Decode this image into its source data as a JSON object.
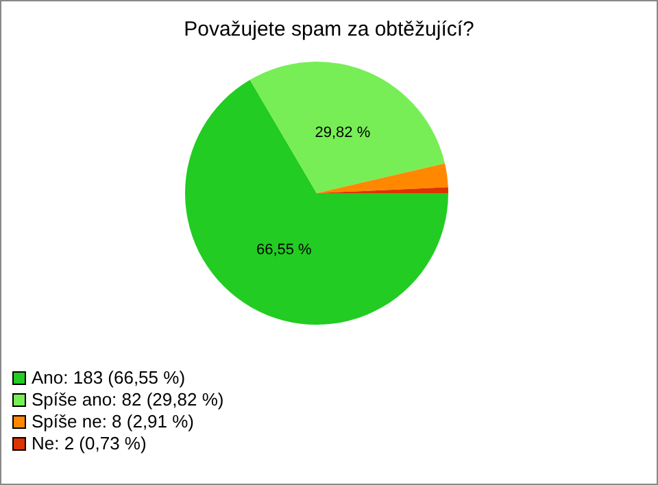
{
  "chart_data": {
    "type": "pie",
    "title": "Považujete spam za obtěžující?",
    "categories": [
      "Ano: 183 (66,55 %)",
      "Spíše ano: 82 (29,82 %)",
      "Spíše ne: 8 (2,91 %)",
      "Ne: 2 (0,73 %)"
    ],
    "values": [
      66.55,
      29.82,
      2.91,
      0.73
    ],
    "colors": [
      "#22cc22",
      "#77ee55",
      "#ff8800",
      "#dd3300"
    ],
    "value_labels": [
      "66,55 %",
      "29,82 %",
      null,
      null
    ],
    "legend": "bottom left"
  }
}
